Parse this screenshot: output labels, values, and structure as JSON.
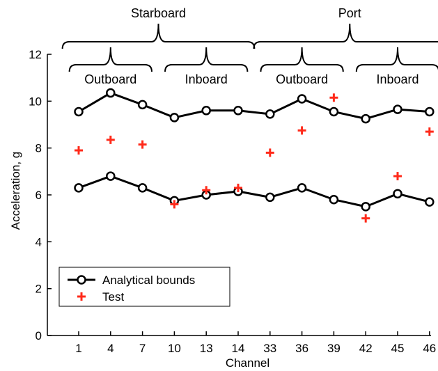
{
  "chart_data": {
    "type": "line",
    "xlabel": "Channel",
    "ylabel": "Acceleration, g",
    "ylim": [
      0,
      12
    ],
    "yticks": [
      0,
      2,
      4,
      6,
      8,
      10,
      12
    ],
    "categories": [
      "1",
      "4",
      "7",
      "10",
      "13",
      "14",
      "33",
      "36",
      "39",
      "42",
      "45",
      "46"
    ],
    "series": [
      {
        "name": "Analytical bounds",
        "style": "line-circle",
        "color": "#000000",
        "lines": [
          [
            9.55,
            10.35,
            9.85,
            9.3,
            9.6,
            9.6,
            9.45,
            10.1,
            9.55,
            9.25,
            9.65,
            9.55
          ],
          [
            6.3,
            6.8,
            6.3,
            5.75,
            6.0,
            6.15,
            5.9,
            6.3,
            5.8,
            5.5,
            6.05,
            5.7
          ]
        ]
      },
      {
        "name": "Test",
        "style": "plus",
        "color": "#ff2a1a",
        "values": [
          7.9,
          8.35,
          8.15,
          5.6,
          6.2,
          6.3,
          7.8,
          8.75,
          10.15,
          5.0,
          6.8,
          8.7
        ]
      }
    ],
    "groups": [
      {
        "label": "Starboard",
        "start": 0,
        "end": 5,
        "level": "outer"
      },
      {
        "label": "Port",
        "start": 6,
        "end": 11,
        "level": "outer"
      },
      {
        "label": "Outboard",
        "start": 0,
        "end": 2,
        "level": "inner"
      },
      {
        "label": "Inboard",
        "start": 3,
        "end": 5,
        "level": "inner"
      },
      {
        "label": "Outboard",
        "start": 6,
        "end": 8,
        "level": "inner"
      },
      {
        "label": "Inboard",
        "start": 9,
        "end": 11,
        "level": "inner"
      }
    ],
    "legend": {
      "position": "lower-left",
      "entries": [
        "Analytical bounds",
        "Test"
      ]
    },
    "grid": false
  }
}
